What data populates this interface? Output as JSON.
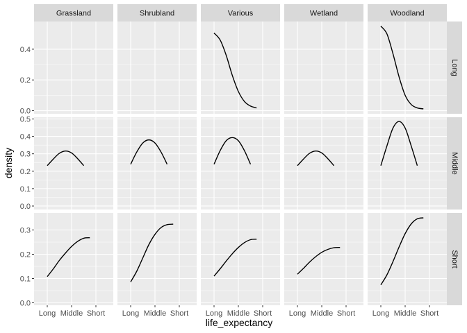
{
  "chart_data": {
    "type": "line",
    "facet_columns": [
      "Grassland",
      "Shrubland",
      "Various",
      "Wetland",
      "Woodland"
    ],
    "facet_rows": [
      "Long",
      "Middle",
      "Short"
    ],
    "xlabel": "life_expectancy",
    "ylabel": "density",
    "x_categories": [
      "Long",
      "Middle",
      "Short"
    ],
    "rows": [
      {
        "row": "Long",
        "ylim": [
          -0.02,
          0.58
        ],
        "yticks": [
          "0.0",
          "0.2",
          "0.4"
        ],
        "ytick_values": [
          0,
          0.2,
          0.4
        ]
      },
      {
        "row": "Middle",
        "ylim": [
          -0.02,
          0.51
        ],
        "yticks": [
          "0.0",
          "0.1",
          "0.2",
          "0.3",
          "0.4",
          "0.5"
        ],
        "ytick_values": [
          0,
          0.1,
          0.2,
          0.3,
          0.4,
          0.5
        ]
      },
      {
        "row": "Short",
        "ylim": [
          -0.01,
          0.37
        ],
        "yticks": [
          "0.0",
          "0.1",
          "0.2",
          "0.3"
        ],
        "ytick_values": [
          0,
          0.1,
          0.2,
          0.3
        ]
      }
    ],
    "panels": [
      {
        "row": "Long",
        "col": "Grassland",
        "points": []
      },
      {
        "row": "Long",
        "col": "Shrubland",
        "points": []
      },
      {
        "row": "Long",
        "col": "Various",
        "points": [
          [
            1.0,
            0.505
          ],
          [
            1.25,
            0.46
          ],
          [
            1.5,
            0.36
          ],
          [
            1.75,
            0.23
          ],
          [
            2.0,
            0.125
          ],
          [
            2.25,
            0.06
          ],
          [
            2.5,
            0.03
          ],
          [
            2.75,
            0.018
          ]
        ]
      },
      {
        "row": "Long",
        "col": "Wetland",
        "points": []
      },
      {
        "row": "Long",
        "col": "Woodland",
        "points": [
          [
            1.0,
            0.55
          ],
          [
            1.25,
            0.5
          ],
          [
            1.5,
            0.37
          ],
          [
            1.75,
            0.22
          ],
          [
            2.0,
            0.1
          ],
          [
            2.25,
            0.04
          ],
          [
            2.5,
            0.018
          ],
          [
            2.75,
            0.012
          ]
        ]
      },
      {
        "row": "Middle",
        "col": "Grassland",
        "points": [
          [
            1.0,
            0.232
          ],
          [
            1.25,
            0.27
          ],
          [
            1.5,
            0.303
          ],
          [
            1.75,
            0.316
          ],
          [
            2.0,
            0.305
          ],
          [
            2.25,
            0.272
          ],
          [
            2.5,
            0.232
          ]
        ]
      },
      {
        "row": "Middle",
        "col": "Shrubland",
        "points": [
          [
            1.0,
            0.24
          ],
          [
            1.25,
            0.31
          ],
          [
            1.5,
            0.362
          ],
          [
            1.75,
            0.38
          ],
          [
            2.0,
            0.362
          ],
          [
            2.25,
            0.31
          ],
          [
            2.5,
            0.24
          ]
        ]
      },
      {
        "row": "Middle",
        "col": "Various",
        "points": [
          [
            1.0,
            0.24
          ],
          [
            1.25,
            0.318
          ],
          [
            1.5,
            0.375
          ],
          [
            1.75,
            0.393
          ],
          [
            2.0,
            0.375
          ],
          [
            2.25,
            0.318
          ],
          [
            2.5,
            0.24
          ]
        ]
      },
      {
        "row": "Middle",
        "col": "Wetland",
        "points": [
          [
            1.0,
            0.232
          ],
          [
            1.25,
            0.27
          ],
          [
            1.5,
            0.303
          ],
          [
            1.75,
            0.316
          ],
          [
            2.0,
            0.305
          ],
          [
            2.25,
            0.272
          ],
          [
            2.5,
            0.232
          ]
        ]
      },
      {
        "row": "Middle",
        "col": "Woodland",
        "points": [
          [
            1.0,
            0.232
          ],
          [
            1.25,
            0.345
          ],
          [
            1.5,
            0.448
          ],
          [
            1.75,
            0.486
          ],
          [
            2.0,
            0.448
          ],
          [
            2.25,
            0.345
          ],
          [
            2.5,
            0.232
          ]
        ]
      },
      {
        "row": "Short",
        "col": "Grassland",
        "points": [
          [
            1.0,
            0.108
          ],
          [
            1.25,
            0.14
          ],
          [
            1.5,
            0.175
          ],
          [
            1.75,
            0.205
          ],
          [
            2.0,
            0.232
          ],
          [
            2.25,
            0.253
          ],
          [
            2.5,
            0.266
          ],
          [
            2.75,
            0.268
          ]
        ]
      },
      {
        "row": "Short",
        "col": "Shrubland",
        "points": [
          [
            1.0,
            0.086
          ],
          [
            1.25,
            0.13
          ],
          [
            1.5,
            0.185
          ],
          [
            1.75,
            0.24
          ],
          [
            2.0,
            0.282
          ],
          [
            2.25,
            0.31
          ],
          [
            2.5,
            0.322
          ],
          [
            2.75,
            0.324
          ]
        ]
      },
      {
        "row": "Short",
        "col": "Various",
        "points": [
          [
            1.0,
            0.11
          ],
          [
            1.25,
            0.14
          ],
          [
            1.5,
            0.172
          ],
          [
            1.75,
            0.202
          ],
          [
            2.0,
            0.228
          ],
          [
            2.25,
            0.248
          ],
          [
            2.5,
            0.26
          ],
          [
            2.75,
            0.262
          ]
        ]
      },
      {
        "row": "Short",
        "col": "Wetland",
        "points": [
          [
            1.0,
            0.118
          ],
          [
            1.25,
            0.142
          ],
          [
            1.5,
            0.168
          ],
          [
            1.75,
            0.19
          ],
          [
            2.0,
            0.208
          ],
          [
            2.25,
            0.22
          ],
          [
            2.5,
            0.227
          ],
          [
            2.75,
            0.228
          ]
        ]
      },
      {
        "row": "Short",
        "col": "Woodland",
        "points": [
          [
            1.0,
            0.074
          ],
          [
            1.25,
            0.115
          ],
          [
            1.5,
            0.17
          ],
          [
            1.75,
            0.23
          ],
          [
            2.0,
            0.285
          ],
          [
            2.25,
            0.325
          ],
          [
            2.5,
            0.346
          ],
          [
            2.75,
            0.35
          ]
        ]
      }
    ],
    "grid": true,
    "legend": "none",
    "colors": {
      "panel_background": "#ebebeb",
      "strip_background": "#d9d9d9",
      "gridline": "#ffffff",
      "line": "#000000",
      "tick_text": "#4d4d4d"
    }
  }
}
